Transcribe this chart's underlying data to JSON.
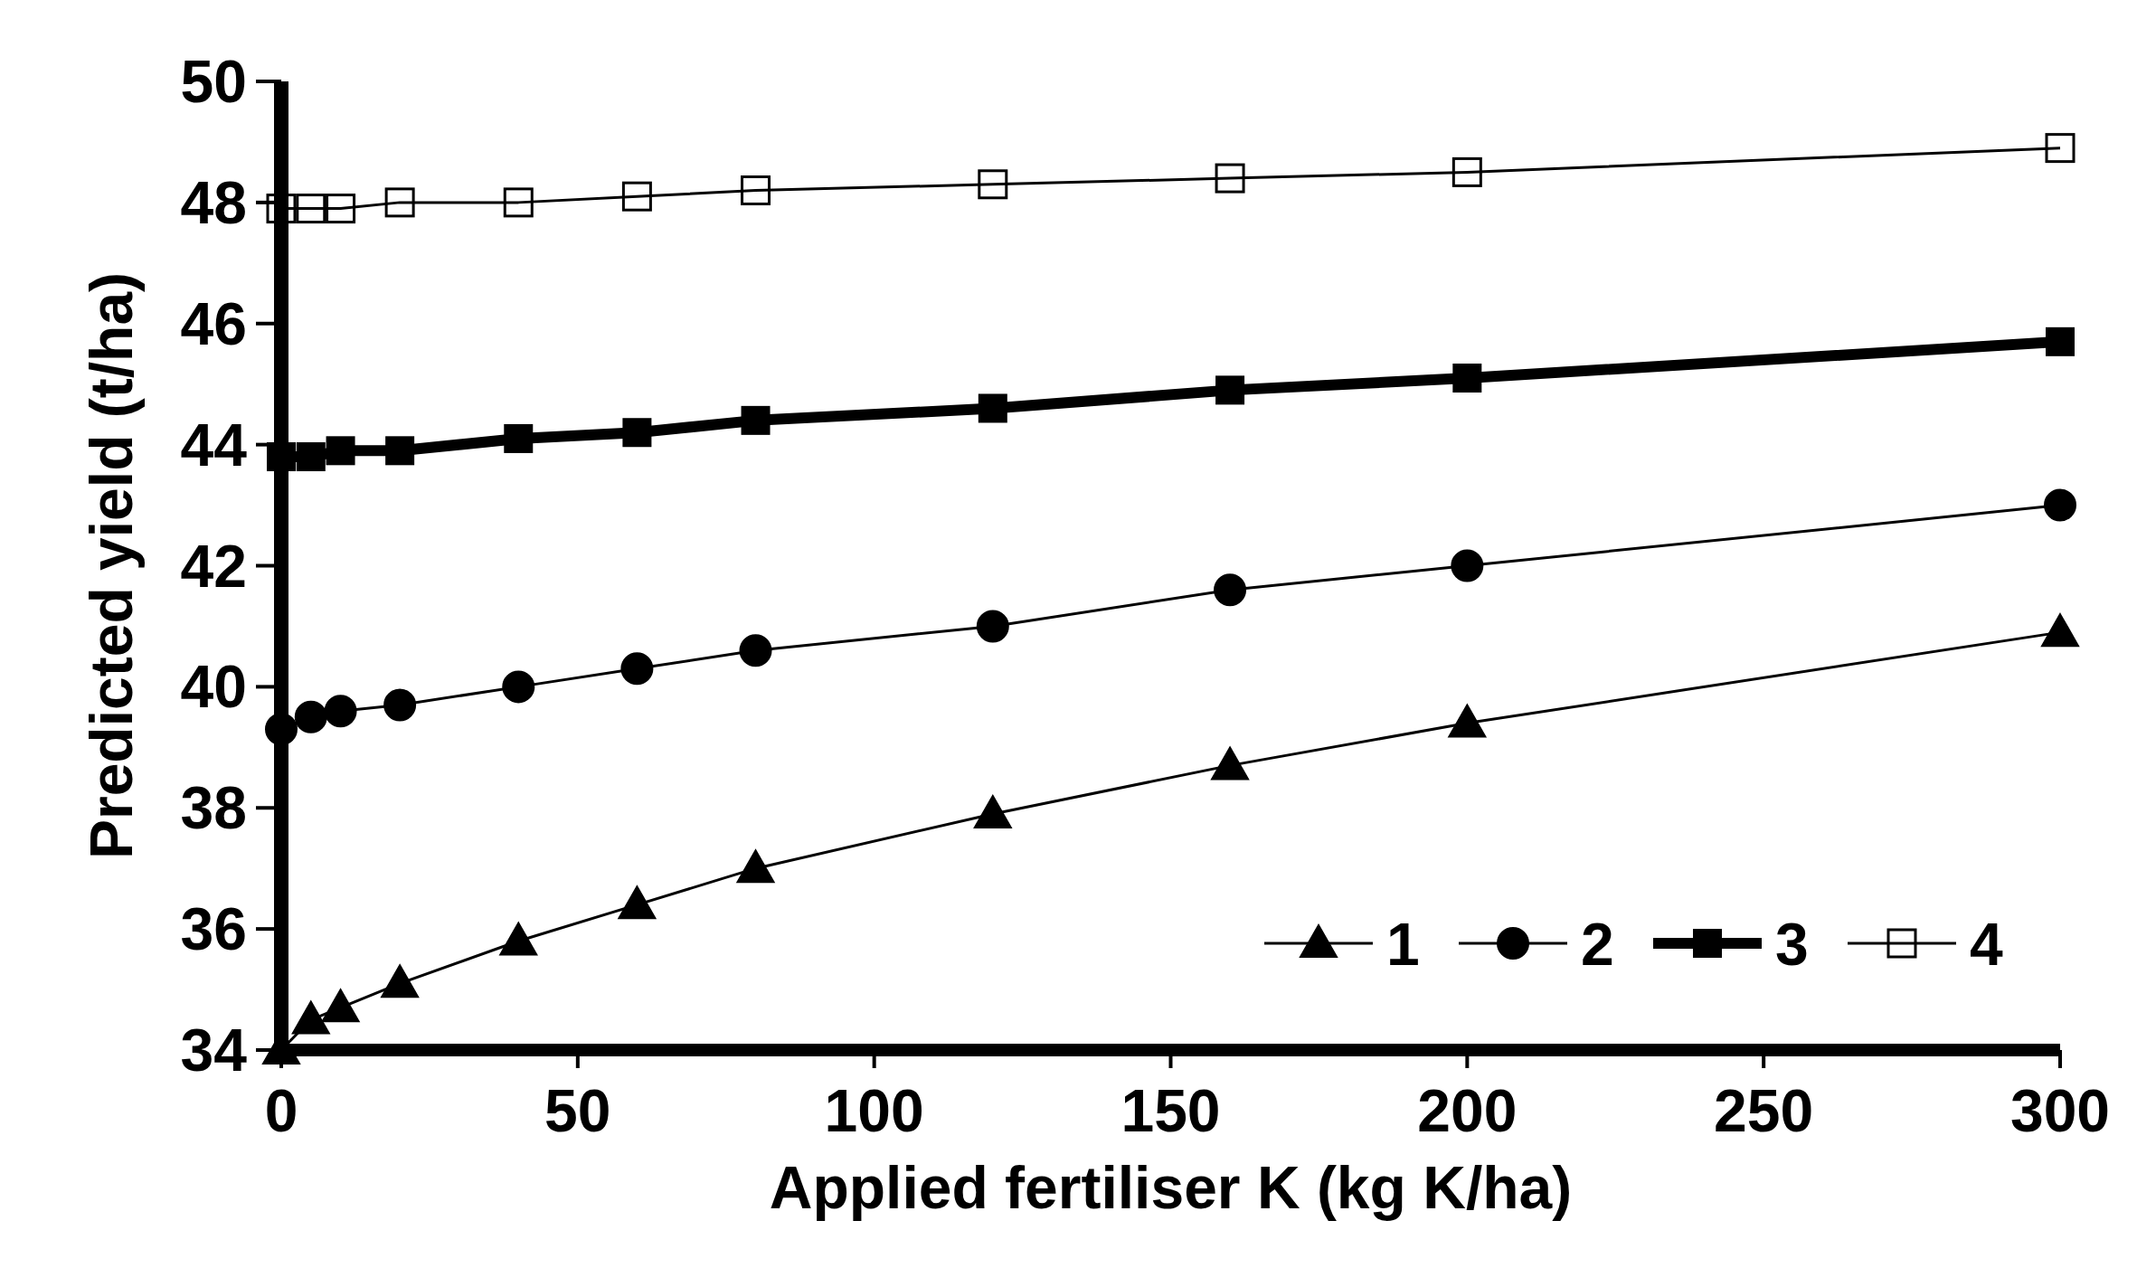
{
  "chart_data": {
    "type": "line",
    "xlabel": "Applied fertiliser K (kg K/ha)",
    "ylabel": "Predicted yield (t/ha)",
    "x": [
      0,
      5,
      10,
      20,
      40,
      60,
      80,
      120,
      160,
      200,
      300
    ],
    "xlim": [
      0,
      300
    ],
    "xticks": [
      0,
      50,
      100,
      150,
      200,
      250,
      300
    ],
    "ylim": [
      34,
      50
    ],
    "yticks": [
      34,
      36,
      38,
      40,
      42,
      44,
      46,
      48,
      50
    ],
    "grid": false,
    "legend": "bottom right",
    "series": [
      {
        "name": "1",
        "color": "#000000",
        "marker": "triangle",
        "values": [
          34.0,
          34.5,
          34.7,
          35.1,
          35.8,
          36.4,
          37.0,
          37.9,
          38.7,
          39.4,
          40.9
        ]
      },
      {
        "name": "2",
        "color": "#000000",
        "marker": "circle",
        "values": [
          39.3,
          39.5,
          39.6,
          39.7,
          40.0,
          40.3,
          40.6,
          41.0,
          41.6,
          42.0,
          43.0
        ]
      },
      {
        "name": "3",
        "color": "#000000",
        "marker": "square",
        "values": [
          43.8,
          43.8,
          43.9,
          43.9,
          44.1,
          44.2,
          44.4,
          44.6,
          44.9,
          45.1,
          45.7
        ]
      },
      {
        "name": "4",
        "color": "#000000",
        "marker": "square",
        "values": [
          47.9,
          47.9,
          47.9,
          48.0,
          48.0,
          48.1,
          48.2,
          48.3,
          48.4,
          48.5,
          48.9
        ]
      }
    ]
  }
}
